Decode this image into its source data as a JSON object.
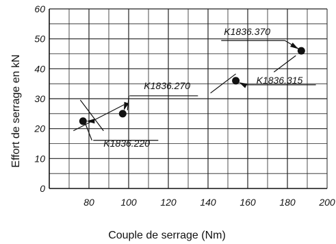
{
  "chart_data": {
    "type": "scatter",
    "xlabel": "Couple de serrage (Nm)",
    "ylabel": "Effort de serrage en kN",
    "xlim": [
      60,
      200
    ],
    "ylim": [
      0,
      60
    ],
    "x_ticks": [
      80,
      100,
      120,
      140,
      160,
      180,
      200
    ],
    "y_ticks": [
      0,
      10,
      20,
      30,
      40,
      50,
      60
    ],
    "grid": true,
    "points": [
      {
        "label": "K1836.220",
        "x": 77,
        "y": 22.5
      },
      {
        "label": "K1836.270",
        "x": 97,
        "y": 25
      },
      {
        "label": "K1836.315",
        "x": 154,
        "y": 36
      },
      {
        "label": "K1836.370",
        "x": 187,
        "y": 46
      }
    ]
  }
}
